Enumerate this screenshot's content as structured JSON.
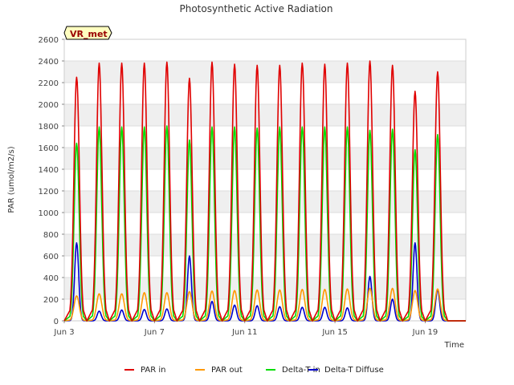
{
  "chart_data": {
    "type": "line",
    "title": "Photosynthetic Active Radiation",
    "xlabel": "Time",
    "ylabel": "PAR (umol/m2/s)",
    "badge": "VR_met",
    "ylim": [
      0,
      2600
    ],
    "yticks": [
      0,
      200,
      400,
      600,
      800,
      1000,
      1200,
      1400,
      1600,
      1800,
      2000,
      2200,
      2400,
      2600
    ],
    "xlim": [
      3.0,
      20.8
    ],
    "xticks": [
      {
        "value": 3,
        "label": "Jun 3"
      },
      {
        "value": 7,
        "label": "Jun 7"
      },
      {
        "value": 11,
        "label": "Jun 11"
      },
      {
        "value": 15,
        "label": "Jun 15"
      },
      {
        "value": 19,
        "label": "Jun 19"
      }
    ],
    "grid": "horizontal bands",
    "legend_position": "bottom",
    "days": [
      3,
      4,
      5,
      6,
      7,
      8,
      9,
      10,
      11,
      12,
      13,
      14,
      15,
      16,
      17,
      18,
      19,
      20
    ],
    "series": [
      {
        "name": "PAR in",
        "color": "#e00000",
        "daily_peak": [
          2250,
          2380,
          2380,
          2380,
          2390,
          2240,
          2390,
          2370,
          2360,
          2360,
          2380,
          2370,
          2380,
          2400,
          2360,
          2120,
          2300,
          0
        ]
      },
      {
        "name": "PAR out",
        "color": "#ff9900",
        "daily_peak": [
          230,
          250,
          250,
          260,
          260,
          270,
          275,
          280,
          285,
          285,
          290,
          290,
          295,
          300,
          300,
          280,
          295,
          0
        ]
      },
      {
        "name": "Delta-T in",
        "color": "#00dd00",
        "daily_peak": [
          1640,
          1790,
          1790,
          1790,
          1800,
          1670,
          1790,
          1790,
          1780,
          1790,
          1790,
          1790,
          1790,
          1760,
          1770,
          1580,
          1720,
          0
        ]
      },
      {
        "name": "Delta-T Diffuse",
        "color": "#0000cc",
        "daily_peak": [
          720,
          90,
          100,
          105,
          110,
          600,
          180,
          145,
          140,
          130,
          125,
          125,
          120,
          410,
          200,
          720,
          290,
          0
        ]
      }
    ]
  }
}
